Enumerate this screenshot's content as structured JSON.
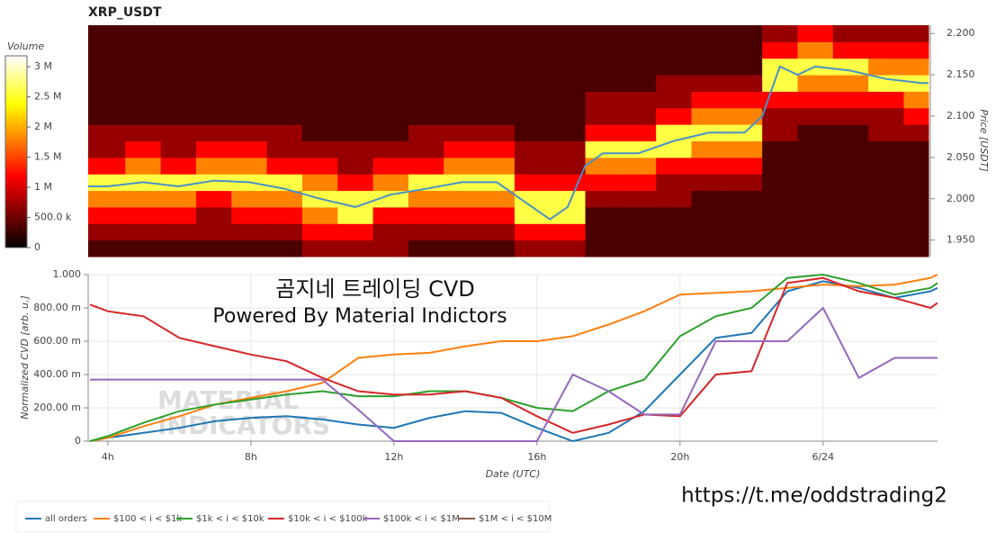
{
  "chart_data": [
    {
      "type": "heatmap",
      "title": "XRP_USDT",
      "ylabel": "Price [USDT]",
      "colorbar_label": "Volume",
      "xlim": [
        3.45,
        27.2
      ],
      "ylim": [
        1.93,
        2.21
      ],
      "yticks": [
        {
          "value": 1.95,
          "label": "1.950"
        },
        {
          "value": 2.0,
          "label": "2.000"
        },
        {
          "value": 2.05,
          "label": "2.050"
        },
        {
          "value": 2.1,
          "label": "2.100"
        },
        {
          "value": 2.15,
          "label": "2.150"
        },
        {
          "value": 2.2,
          "label": "2.200"
        }
      ],
      "zlim": [
        0,
        3180000
      ],
      "zticks": [
        0,
        {
          "value": 500000,
          "label": "500.0 k"
        },
        {
          "value": 1000000,
          "label": "1 M"
        },
        {
          "value": 1500000,
          "label": "1.5 M"
        },
        {
          "value": 2000000,
          "label": "2 M"
        },
        {
          "value": 2500000,
          "label": "2.5 M"
        },
        {
          "value": 3000000,
          "label": "3 M"
        }
      ],
      "x_bins": [
        3.45,
        4.5,
        5.5,
        6.5,
        7.5,
        8.5,
        9.5,
        10.5,
        11.5,
        12.5,
        13.5,
        14.5,
        15.5,
        16.5,
        17.5,
        18.5,
        19.5,
        20.5,
        21.5,
        22.5,
        23.5,
        24.5,
        25.5,
        26.5,
        27.2
      ],
      "y_bins": [
        1.93,
        1.95,
        1.97,
        1.99,
        2.01,
        2.03,
        2.05,
        2.07,
        2.09,
        2.11,
        2.13,
        2.15,
        2.17,
        2.19,
        2.21
      ],
      "z": [
        [
          350000,
          700000,
          1200000,
          1800000,
          2600000,
          1200000,
          700000,
          700000,
          350000,
          350000,
          350000,
          350000,
          350000,
          350000
        ],
        [
          350000,
          700000,
          1200000,
          1800000,
          2600000,
          1800000,
          1200000,
          700000,
          350000,
          350000,
          350000,
          350000,
          350000,
          350000
        ],
        [
          350000,
          700000,
          1200000,
          1800000,
          2600000,
          1200000,
          700000,
          700000,
          350000,
          350000,
          350000,
          350000,
          350000,
          350000
        ],
        [
          350000,
          700000,
          700000,
          1200000,
          2600000,
          1800000,
          1200000,
          700000,
          350000,
          350000,
          350000,
          350000,
          350000,
          350000
        ],
        [
          350000,
          700000,
          1200000,
          1800000,
          2600000,
          1800000,
          1200000,
          700000,
          350000,
          350000,
          350000,
          350000,
          350000,
          350000
        ],
        [
          350000,
          700000,
          1200000,
          1800000,
          2600000,
          1200000,
          700000,
          700000,
          350000,
          350000,
          350000,
          350000,
          350000,
          350000
        ],
        [
          700000,
          1200000,
          1800000,
          2600000,
          1800000,
          1200000,
          700000,
          350000,
          350000,
          350000,
          350000,
          350000,
          350000,
          350000
        ],
        [
          700000,
          1200000,
          2600000,
          2600000,
          1200000,
          700000,
          700000,
          350000,
          350000,
          350000,
          350000,
          350000,
          350000,
          350000
        ],
        [
          700000,
          700000,
          1200000,
          2600000,
          1800000,
          1200000,
          700000,
          350000,
          350000,
          350000,
          350000,
          350000,
          350000,
          350000
        ],
        [
          350000,
          700000,
          1200000,
          1800000,
          2600000,
          1200000,
          700000,
          700000,
          350000,
          350000,
          350000,
          350000,
          350000,
          350000
        ],
        [
          350000,
          700000,
          1200000,
          1800000,
          2600000,
          1800000,
          1200000,
          700000,
          350000,
          350000,
          350000,
          350000,
          350000,
          350000
        ],
        [
          350000,
          700000,
          1200000,
          1800000,
          2600000,
          1800000,
          1200000,
          700000,
          350000,
          350000,
          350000,
          350000,
          350000,
          350000
        ],
        [
          700000,
          1200000,
          2600000,
          2600000,
          1200000,
          700000,
          700000,
          350000,
          350000,
          350000,
          350000,
          350000,
          350000,
          350000
        ],
        [
          700000,
          1200000,
          2600000,
          2600000,
          1200000,
          700000,
          700000,
          350000,
          350000,
          350000,
          350000,
          350000,
          350000,
          350000
        ],
        [
          350000,
          350000,
          350000,
          700000,
          1200000,
          1800000,
          2600000,
          1200000,
          700000,
          700000,
          350000,
          350000,
          350000,
          350000
        ],
        [
          350000,
          350000,
          350000,
          700000,
          1200000,
          1800000,
          2600000,
          1200000,
          700000,
          700000,
          350000,
          350000,
          350000,
          350000
        ],
        [
          350000,
          350000,
          350000,
          700000,
          700000,
          1200000,
          2600000,
          2600000,
          1200000,
          700000,
          700000,
          350000,
          350000,
          350000
        ],
        [
          350000,
          350000,
          350000,
          350000,
          700000,
          1200000,
          1800000,
          2600000,
          1800000,
          1200000,
          700000,
          350000,
          350000,
          350000
        ],
        [
          350000,
          350000,
          350000,
          350000,
          700000,
          1200000,
          1800000,
          2600000,
          1800000,
          1200000,
          700000,
          350000,
          350000,
          350000
        ],
        [
          350000,
          350000,
          350000,
          350000,
          350000,
          350000,
          350000,
          700000,
          700000,
          1200000,
          2600000,
          2600000,
          1200000,
          700000
        ],
        [
          350000,
          350000,
          350000,
          350000,
          350000,
          350000,
          350000,
          350000,
          700000,
          1200000,
          1800000,
          2600000,
          1800000,
          1200000
        ],
        [
          350000,
          350000,
          350000,
          350000,
          350000,
          350000,
          350000,
          350000,
          700000,
          1200000,
          1800000,
          2600000,
          1200000,
          700000
        ],
        [
          350000,
          350000,
          350000,
          350000,
          350000,
          350000,
          350000,
          700000,
          700000,
          1200000,
          2600000,
          1800000,
          1200000,
          700000
        ],
        [
          350000,
          350000,
          350000,
          350000,
          350000,
          350000,
          350000,
          700000,
          1200000,
          1800000,
          2600000,
          1800000,
          1200000,
          700000
        ]
      ],
      "price": {
        "color": "#4a90c8",
        "x": [
          3.45,
          4,
          5,
          6,
          7,
          8,
          9,
          10,
          11,
          12,
          13,
          14,
          15,
          16,
          16.5,
          17,
          17.5,
          18,
          19,
          20,
          21,
          22,
          22.5,
          23,
          23.5,
          24,
          25,
          26,
          27,
          27.2
        ],
        "values": [
          2.015,
          2.015,
          2.02,
          2.015,
          2.022,
          2.02,
          2.012,
          2.0,
          1.99,
          2.005,
          2.012,
          2.02,
          2.02,
          1.99,
          1.975,
          1.99,
          2.04,
          2.055,
          2.055,
          2.07,
          2.08,
          2.08,
          2.1,
          2.16,
          2.15,
          2.16,
          2.155,
          2.145,
          2.14,
          2.14
        ]
      }
    },
    {
      "type": "line",
      "xlabel": "Date (UTC)",
      "ylabel": "Normalized CVD [arb. u.]",
      "annotations": [
        "곰지네 트레이딩 CVD",
        "Powered By Material Indictors"
      ],
      "watermark": [
        "MATERIAL",
        "INDICATORS"
      ],
      "xlim": [
        3.45,
        27.2
      ],
      "ylim": [
        0,
        1
      ],
      "xticks": [
        {
          "value": 4,
          "label": "4h"
        },
        {
          "value": 8,
          "label": "8h"
        },
        {
          "value": 12,
          "label": "12h"
        },
        {
          "value": 16,
          "label": "16h"
        },
        {
          "value": 20,
          "label": "20h"
        },
        {
          "value": 24,
          "label": "6/24"
        }
      ],
      "yticks": [
        0,
        {
          "value": 0.2,
          "label": "200.00 m"
        },
        {
          "value": 0.4,
          "label": "400.00 m"
        },
        {
          "value": 0.6,
          "label": "600.00 m"
        },
        {
          "value": 0.8,
          "label": "800.00 m"
        },
        {
          "value": 1,
          "label": "1.000"
        }
      ],
      "grid": true,
      "x": [
        3.5,
        4,
        5,
        6,
        7,
        8,
        9,
        10,
        11,
        12,
        13,
        14,
        15,
        16,
        17,
        18,
        19,
        20,
        21,
        22,
        23,
        24,
        25,
        26,
        27,
        27.2
      ],
      "series": [
        {
          "name": "all orders",
          "color": "#1f77b4",
          "values": [
            0.0,
            0.02,
            0.05,
            0.08,
            0.12,
            0.14,
            0.15,
            0.13,
            0.1,
            0.08,
            0.14,
            0.18,
            0.17,
            0.08,
            0.0,
            0.05,
            0.18,
            0.4,
            0.62,
            0.65,
            0.9,
            0.96,
            0.92,
            0.86,
            0.9,
            0.92
          ]
        },
        {
          "name": "$100 < i < $1k",
          "color": "#ff7f0e",
          "values": [
            0.0,
            0.02,
            0.09,
            0.15,
            0.22,
            0.26,
            0.3,
            0.35,
            0.5,
            0.52,
            0.53,
            0.57,
            0.6,
            0.6,
            0.63,
            0.7,
            0.78,
            0.88,
            0.89,
            0.9,
            0.92,
            0.94,
            0.93,
            0.94,
            0.98,
            1.0
          ]
        },
        {
          "name": "$1k < i < $10k",
          "color": "#2ca02c",
          "values": [
            0.0,
            0.03,
            0.11,
            0.18,
            0.22,
            0.25,
            0.28,
            0.3,
            0.27,
            0.27,
            0.3,
            0.3,
            0.26,
            0.2,
            0.18,
            0.3,
            0.37,
            0.63,
            0.75,
            0.8,
            0.98,
            1.0,
            0.95,
            0.88,
            0.92,
            0.95
          ]
        },
        {
          "name": "$10k < i < $100k",
          "color": "#d62728",
          "values": [
            0.82,
            0.78,
            0.75,
            0.62,
            0.57,
            0.52,
            0.48,
            0.38,
            0.3,
            0.28,
            0.28,
            0.3,
            0.26,
            0.15,
            0.05,
            0.1,
            0.16,
            0.15,
            0.4,
            0.42,
            0.95,
            0.98,
            0.9,
            0.86,
            0.8,
            0.83
          ]
        },
        {
          "name": "$100k < i < $1M",
          "color": "#9467bd",
          "values": [
            0.37,
            0.37,
            0.37,
            0.37,
            0.37,
            0.37,
            0.37,
            0.37,
            0.19,
            0.0,
            0.0,
            0.0,
            0.0,
            0.0,
            0.4,
            0.3,
            0.16,
            0.16,
            0.6,
            0.6,
            0.6,
            0.8,
            0.38,
            0.5,
            0.5,
            0.5
          ]
        },
        {
          "name": "$1M < i < $10M",
          "color": "#8c564b",
          "values": [
            null,
            null,
            null,
            null,
            null,
            null,
            null,
            null,
            null,
            null,
            null,
            null,
            null,
            null,
            null,
            null,
            null,
            null,
            null,
            null,
            null,
            null,
            null,
            null,
            null,
            null
          ]
        }
      ]
    }
  ],
  "footer_text": "https://t.me/oddstrading2"
}
